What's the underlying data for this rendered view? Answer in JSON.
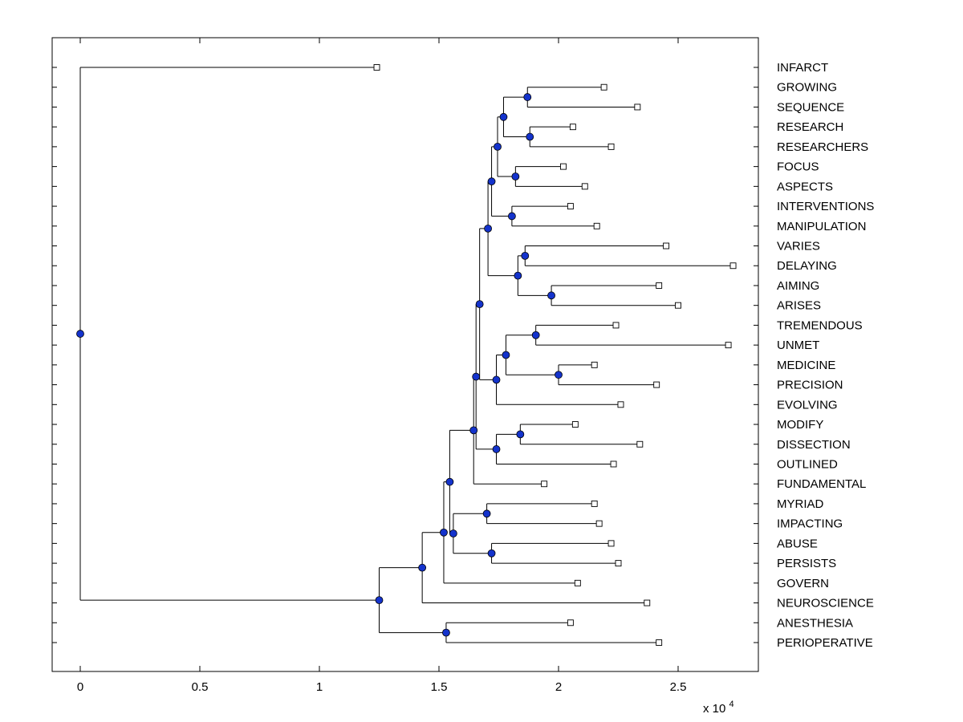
{
  "figure": {
    "background": "#ffffff"
  },
  "chart_data": {
    "type": "dendrogram",
    "title": "",
    "orientation": "left-to-right",
    "legend": "none",
    "grid": false,
    "x_axis": {
      "tick_labels": [
        "0",
        "0.5",
        "1",
        "1.5",
        "2",
        "2.5"
      ],
      "tick_values": [
        0,
        0.5,
        1,
        1.5,
        2,
        2.5
      ],
      "multiplier_prefix": "x 10",
      "multiplier_exponent": "4",
      "unit_multiplier": 10000,
      "range": [
        -0.117,
        2.836
      ]
    },
    "y_axis": {
      "tick_labels": [],
      "note": "one unlabeled tick per leaf row"
    },
    "leaf_labels": [
      "INFARCT",
      "GROWING",
      "SEQUENCE",
      "RESEARCH",
      "RESEARCHERS",
      "FOCUS",
      "ASPECTS",
      "INTERVENTIONS",
      "MANIPULATION",
      "VARIES",
      "DELAYING",
      "AIMING",
      "ARISES",
      "TREMENDOUS",
      "UNMET",
      "MEDICINE",
      "PRECISION",
      "EVOLVING",
      "MODIFY",
      "DISSECTION",
      "OUTLINED",
      "FUNDAMENTAL",
      "MYRIAD",
      "IMPACTING",
      "ABUSE",
      "PERSISTS",
      "GOVERN",
      "NEUROSCIENCE",
      "ANESTHESIA",
      "PERIOPERATIVE"
    ],
    "markers": {
      "leaf": "open-square",
      "branch": "filled-circle"
    },
    "colors": {
      "line": "#000000",
      "leaf_fill": "#ffffff",
      "leaf_stroke": "#000000",
      "branch_node_fill": "#1433cc",
      "branch_node_stroke": "#000000",
      "axis": "#000000"
    },
    "tree": {
      "x": 0,
      "children": [
        {
          "label": "INFARCT",
          "x": 1.24
        },
        {
          "x": 1.25,
          "children": [
            {
              "x": 1.43,
              "children": [
                {
                  "x": 1.52,
                  "children": [
                    {
                      "x": 1.545,
                      "children": [
                        {
                          "x": 1.645,
                          "children": [
                            {
                              "x": 1.655,
                              "children": [
                                {
                                  "x": 1.67,
                                  "children": [
                                    {
                                      "x": 1.705,
                                      "children": [
                                        {
                                          "x": 1.72,
                                          "children": [
                                            {
                                              "x": 1.745,
                                              "children": [
                                                {
                                                  "x": 1.77,
                                                  "children": [
                                                    {
                                                      "x": 1.87,
                                                      "children": [
                                                        {
                                                          "label": "GROWING",
                                                          "x": 2.19
                                                        },
                                                        {
                                                          "label": "SEQUENCE",
                                                          "x": 2.33
                                                        }
                                                      ]
                                                    },
                                                    {
                                                      "x": 1.88,
                                                      "children": [
                                                        {
                                                          "label": "RESEARCH",
                                                          "x": 2.06
                                                        },
                                                        {
                                                          "label": "RESEARCHERS",
                                                          "x": 2.22
                                                        }
                                                      ]
                                                    }
                                                  ]
                                                },
                                                {
                                                  "x": 1.82,
                                                  "children": [
                                                    {
                                                      "label": "FOCUS",
                                                      "x": 2.02
                                                    },
                                                    {
                                                      "label": "ASPECTS",
                                                      "x": 2.11
                                                    }
                                                  ]
                                                }
                                              ]
                                            },
                                            {
                                              "x": 1.805,
                                              "children": [
                                                {
                                                  "label": "INTERVENTIONS",
                                                  "x": 2.05
                                                },
                                                {
                                                  "label": "MANIPULATION",
                                                  "x": 2.16
                                                }
                                              ]
                                            }
                                          ]
                                        },
                                        {
                                          "x": 1.83,
                                          "children": [
                                            {
                                              "x": 1.86,
                                              "children": [
                                                {
                                                  "label": "VARIES",
                                                  "x": 2.45
                                                },
                                                {
                                                  "label": "DELAYING",
                                                  "x": 2.73
                                                }
                                              ]
                                            },
                                            {
                                              "x": 1.97,
                                              "children": [
                                                {
                                                  "label": "AIMING",
                                                  "x": 2.42
                                                },
                                                {
                                                  "label": "ARISES",
                                                  "x": 2.5
                                                }
                                              ]
                                            }
                                          ]
                                        }
                                      ]
                                    },
                                    {
                                      "x": 1.74,
                                      "children": [
                                        {
                                          "x": 1.78,
                                          "children": [
                                            {
                                              "x": 1.905,
                                              "children": [
                                                {
                                                  "label": "TREMENDOUS",
                                                  "x": 2.24
                                                },
                                                {
                                                  "label": "UNMET",
                                                  "x": 2.71
                                                }
                                              ]
                                            },
                                            {
                                              "x": 2.0,
                                              "children": [
                                                {
                                                  "label": "MEDICINE",
                                                  "x": 2.15
                                                },
                                                {
                                                  "label": "PRECISION",
                                                  "x": 2.41
                                                }
                                              ]
                                            }
                                          ]
                                        },
                                        {
                                          "label": "EVOLVING",
                                          "x": 2.26
                                        }
                                      ]
                                    }
                                  ]
                                },
                                {
                                  "x": 1.74,
                                  "children": [
                                    {
                                      "x": 1.84,
                                      "children": [
                                        {
                                          "label": "MODIFY",
                                          "x": 2.07
                                        },
                                        {
                                          "label": "DISSECTION",
                                          "x": 2.34
                                        }
                                      ]
                                    },
                                    {
                                      "label": "OUTLINED",
                                      "x": 2.23
                                    }
                                  ]
                                }
                              ]
                            },
                            {
                              "label": "FUNDAMENTAL",
                              "x": 1.94
                            }
                          ]
                        },
                        {
                          "x": 1.56,
                          "children": [
                            {
                              "x": 1.7,
                              "children": [
                                {
                                  "label": "MYRIAD",
                                  "x": 2.15
                                },
                                {
                                  "label": "IMPACTING",
                                  "x": 2.17
                                }
                              ]
                            },
                            {
                              "x": 1.72,
                              "children": [
                                {
                                  "label": "ABUSE",
                                  "x": 2.22
                                },
                                {
                                  "label": "PERSISTS",
                                  "x": 2.25
                                }
                              ]
                            }
                          ]
                        }
                      ]
                    },
                    {
                      "label": "GOVERN",
                      "x": 2.08
                    }
                  ]
                },
                {
                  "label": "NEUROSCIENCE",
                  "x": 2.37
                }
              ]
            },
            {
              "x": 1.53,
              "children": [
                {
                  "label": "ANESTHESIA",
                  "x": 2.05
                },
                {
                  "label": "PERIOPERATIVE",
                  "x": 2.42
                }
              ]
            }
          ]
        }
      ]
    }
  }
}
